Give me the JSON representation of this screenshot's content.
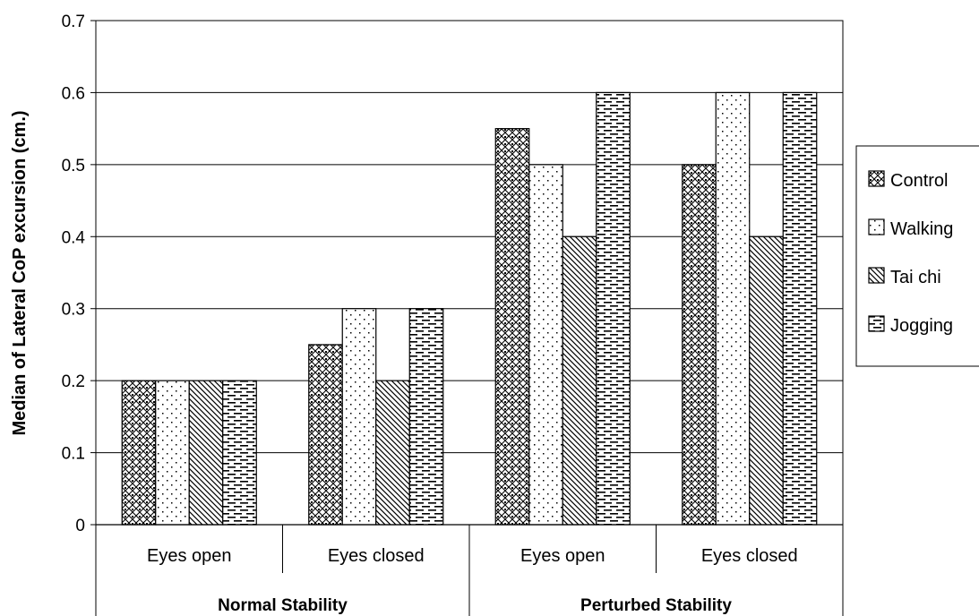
{
  "chart_data": {
    "type": "bar",
    "title": "",
    "ylabel": "Median of Lateral CoP excursion (cm.)",
    "xlabel": "",
    "ylim": [
      0,
      0.7
    ],
    "yticks": [
      "0",
      "0.1",
      "0.2",
      "0.3",
      "0.4",
      "0.5",
      "0.6",
      "0.7"
    ],
    "grid": true,
    "legend_position": "right",
    "categories": [
      "Eyes open",
      "Eyes closed",
      "Eyes open",
      "Eyes closed"
    ],
    "groups": [
      {
        "label": "Normal Stability",
        "span": [
          0,
          1
        ]
      },
      {
        "label": "Perturbed Stability",
        "span": [
          2,
          3
        ]
      }
    ],
    "series": [
      {
        "name": "Control",
        "pattern": "crosshatch",
        "values": [
          0.2,
          0.25,
          0.55,
          0.5
        ]
      },
      {
        "name": "Walking",
        "pattern": "dots",
        "values": [
          0.2,
          0.3,
          0.5,
          0.6
        ]
      },
      {
        "name": "Tai chi",
        "pattern": "diagonal",
        "values": [
          0.2,
          0.2,
          0.4,
          0.4
        ]
      },
      {
        "name": "Jogging",
        "pattern": "dashes",
        "values": [
          0.2,
          0.3,
          0.6,
          0.6
        ]
      }
    ]
  }
}
